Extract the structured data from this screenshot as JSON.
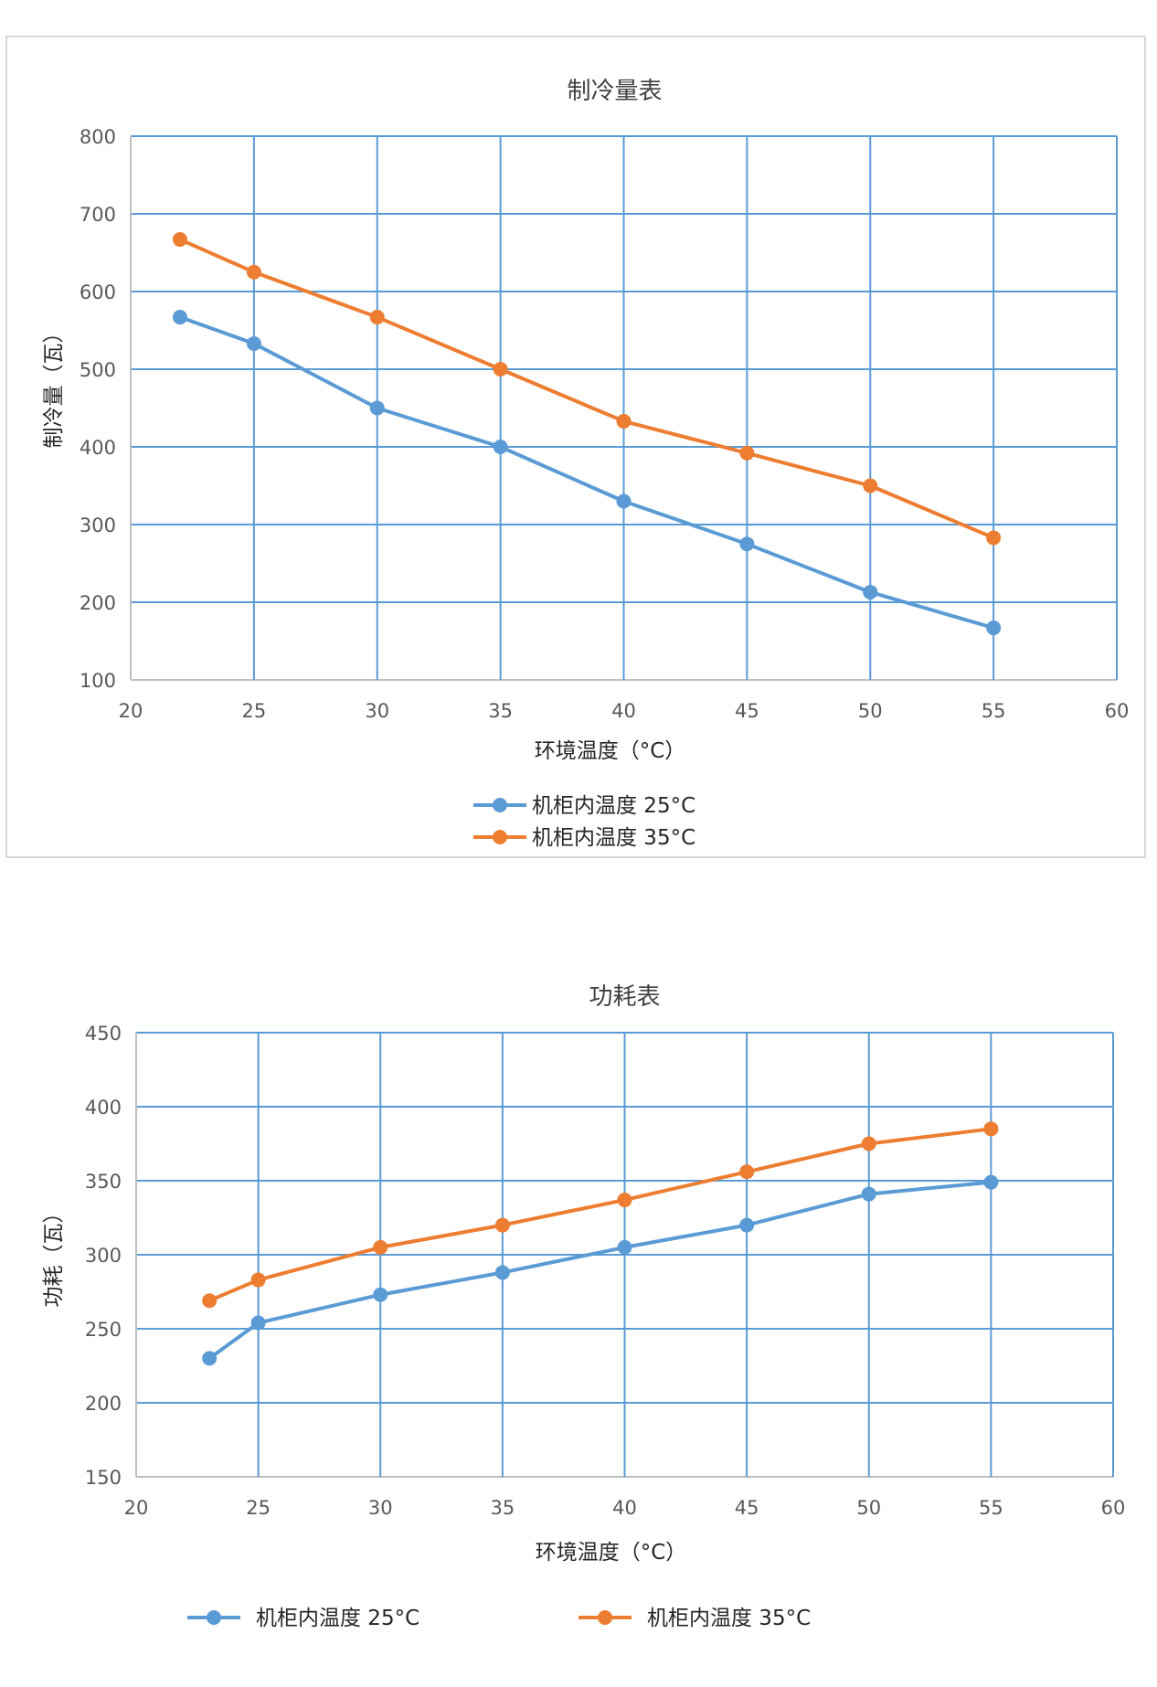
{
  "colors": {
    "series_25": "#5b9bd5",
    "series_35": "#ed7d31",
    "grid": "#5b9bd5",
    "axis_text": "#595959"
  },
  "chart_data": [
    {
      "type": "line",
      "title": "制冷量表",
      "xlabel": "环境温度（°C）",
      "ylabel": "制冷量（瓦）",
      "xlim": [
        20,
        60
      ],
      "ylim": [
        100,
        800
      ],
      "xticks": [
        20,
        25,
        30,
        35,
        40,
        45,
        50,
        55,
        60
      ],
      "yticks": [
        100,
        200,
        300,
        400,
        500,
        600,
        700,
        800
      ],
      "grid": true,
      "legend_placement": "bottom",
      "x": [
        22,
        25,
        30,
        35,
        40,
        45,
        50,
        55
      ],
      "series": [
        {
          "name": "机柜内温度 25°C",
          "color": "#5b9bd5",
          "values": [
            567,
            533,
            450,
            400,
            330,
            275,
            213,
            167
          ]
        },
        {
          "name": "机柜内温度 35°C",
          "color": "#ed7d31",
          "values": [
            667,
            625,
            567,
            500,
            433,
            392,
            350,
            283
          ]
        }
      ]
    },
    {
      "type": "line",
      "title": "功耗表",
      "xlabel": "环境温度（°C）",
      "ylabel": "功耗（瓦）",
      "xlim": [
        20,
        60
      ],
      "ylim": [
        150,
        450
      ],
      "xticks": [
        20,
        25,
        30,
        35,
        40,
        45,
        50,
        55,
        60
      ],
      "yticks": [
        150,
        200,
        250,
        300,
        350,
        400,
        450
      ],
      "grid": true,
      "legend_placement": "bottom",
      "x": [
        23,
        25,
        30,
        35,
        40,
        45,
        50,
        55
      ],
      "series": [
        {
          "name": "机柜内温度 25°C",
          "color": "#5b9bd5",
          "values": [
            230,
            254,
            273,
            288,
            305,
            320,
            341,
            349
          ]
        },
        {
          "name": "机柜内温度 35°C",
          "color": "#ed7d31",
          "values": [
            269,
            283,
            305,
            320,
            337,
            356,
            375,
            385
          ]
        }
      ]
    }
  ]
}
